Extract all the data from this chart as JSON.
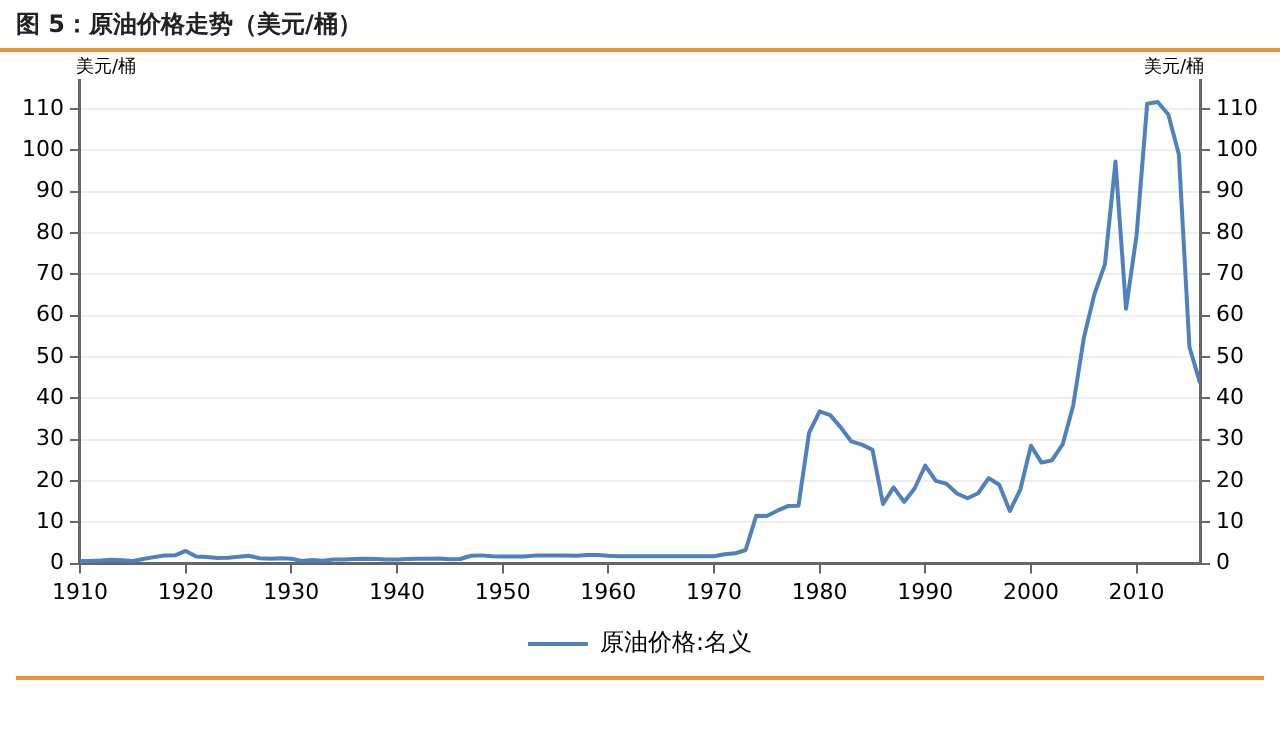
{
  "chart_data": {
    "type": "line",
    "title": "图 5：原油价格走势（美元/桶）",
    "ylabel": "美元/桶",
    "y2label": "美元/桶",
    "x": [
      1910,
      1911,
      1912,
      1913,
      1914,
      1915,
      1916,
      1917,
      1918,
      1919,
      1920,
      1921,
      1922,
      1923,
      1924,
      1925,
      1926,
      1927,
      1928,
      1929,
      1930,
      1931,
      1932,
      1933,
      1934,
      1935,
      1936,
      1937,
      1938,
      1939,
      1940,
      1941,
      1942,
      1943,
      1944,
      1945,
      1946,
      1947,
      1948,
      1949,
      1950,
      1951,
      1952,
      1953,
      1954,
      1955,
      1956,
      1957,
      1958,
      1959,
      1960,
      1961,
      1962,
      1963,
      1964,
      1965,
      1966,
      1967,
      1968,
      1969,
      1970,
      1971,
      1972,
      1973,
      1974,
      1975,
      1976,
      1977,
      1978,
      1979,
      1980,
      1981,
      1982,
      1983,
      1984,
      1985,
      1986,
      1987,
      1988,
      1989,
      1990,
      1991,
      1992,
      1993,
      1994,
      1995,
      1996,
      1997,
      1998,
      1999,
      2000,
      2001,
      2002,
      2003,
      2004,
      2005,
      2006,
      2007,
      2008,
      2009,
      2010,
      2011,
      2012,
      2013,
      2014,
      2015,
      2016
    ],
    "series": [
      {
        "name": "原油价格:名义",
        "color": "#4f81bd",
        "values": [
          0.61,
          0.61,
          0.74,
          0.95,
          0.81,
          0.64,
          1.1,
          1.56,
          1.98,
          2.01,
          3.07,
          1.73,
          1.61,
          1.34,
          1.43,
          1.68,
          1.88,
          1.3,
          1.17,
          1.27,
          1.19,
          0.65,
          0.87,
          0.67,
          1.0,
          0.97,
          1.09,
          1.18,
          1.13,
          1.02,
          1.02,
          1.14,
          1.19,
          1.2,
          1.21,
          1.05,
          1.12,
          1.9,
          1.99,
          1.8,
          1.71,
          1.71,
          1.71,
          1.93,
          1.93,
          1.93,
          1.93,
          1.9,
          2.08,
          2.08,
          1.9,
          1.8,
          1.8,
          1.8,
          1.8,
          1.8,
          1.8,
          1.8,
          1.8,
          1.8,
          1.8,
          2.24,
          2.48,
          3.29,
          11.58,
          11.53,
          12.8,
          13.92,
          14.02,
          31.61,
          36.83,
          35.93,
          32.97,
          29.55,
          28.78,
          27.56,
          14.43,
          18.44,
          14.92,
          18.23,
          23.73,
          20.0,
          19.32,
          16.97,
          15.82,
          17.02,
          20.67,
          19.09,
          12.72,
          17.97,
          28.5,
          24.44,
          25.02,
          28.83,
          38.27,
          54.52,
          65.14,
          72.39,
          97.26,
          61.67,
          79.5,
          111.26,
          111.67,
          108.66,
          98.95,
          52.39,
          43.73
        ]
      }
    ],
    "xlim": [
      1910,
      2016
    ],
    "xticks": [
      1910,
      1920,
      1930,
      1940,
      1950,
      1960,
      1970,
      1980,
      1990,
      2000,
      2010
    ],
    "ylim": [
      0,
      117
    ],
    "yticks": [
      0,
      10,
      20,
      30,
      40,
      50,
      60,
      70,
      80,
      90,
      100,
      110
    ],
    "y2lim": [
      0,
      117
    ],
    "y2ticks": [
      0,
      10,
      20,
      30,
      40,
      50,
      60,
      70,
      80,
      90,
      100,
      110
    ],
    "grid": "y",
    "legend": "bottom",
    "marker": "none",
    "line_style": "solid"
  }
}
